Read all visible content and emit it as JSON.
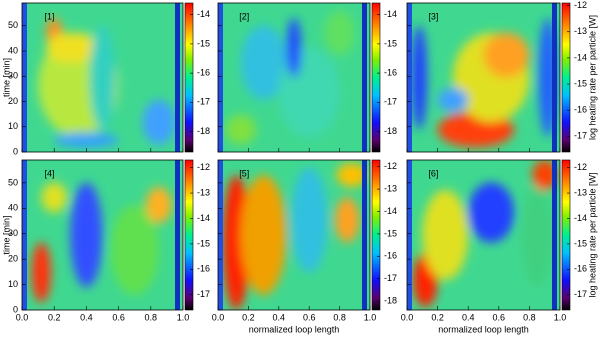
{
  "chart_data": [
    {
      "type": "heatmap",
      "label": "[1]",
      "ylabel": "time [min]",
      "xlim": [
        0,
        1
      ],
      "xticks": [
        0,
        0.2,
        0.4,
        0.6,
        0.8,
        1
      ],
      "ylim": [
        0,
        59
      ],
      "yticks": [
        0,
        10,
        20,
        30,
        40,
        50
      ],
      "clim": [
        -18.7,
        -13.6
      ],
      "cticks": [
        -18,
        -17,
        -16,
        -15,
        -14
      ]
    },
    {
      "type": "heatmap",
      "label": "[2]",
      "xlim": [
        0,
        1
      ],
      "xticks": [
        0,
        0.2,
        0.4,
        0.6,
        0.8,
        1
      ],
      "ylim": [
        0,
        59
      ],
      "yticks": [
        0,
        10,
        20,
        30,
        40,
        50
      ],
      "clim": [
        -18.7,
        -13.6
      ],
      "cticks": [
        -18,
        -17,
        -16,
        -15,
        -14
      ]
    },
    {
      "type": "heatmap",
      "label": "[3]",
      "clabel": "log heating rate per particle [W]",
      "xlim": [
        0,
        1
      ],
      "xticks": [
        0,
        0.2,
        0.4,
        0.6,
        0.8,
        1
      ],
      "ylim": [
        0,
        59
      ],
      "yticks": [
        0,
        10,
        20,
        30,
        40,
        50
      ],
      "clim": [
        -17.6,
        -11.9
      ],
      "cticks": [
        -17,
        -16,
        -15,
        -14,
        -13,
        -12
      ]
    },
    {
      "type": "heatmap",
      "label": "[4]",
      "ylabel": "time [min]",
      "xlim": [
        0,
        1
      ],
      "xticks": [
        {
          "value": 0,
          "label": "0.0"
        },
        0.2,
        0.4,
        0.6,
        0.8,
        {
          "value": 1,
          "label": "1.0"
        }
      ],
      "ylim": [
        0,
        59
      ],
      "yticks": [
        0,
        10,
        20,
        30,
        40,
        50
      ],
      "clim": [
        -17.6,
        -11.7
      ],
      "cticks": [
        -17,
        -16,
        -15,
        -14,
        -13,
        -12
      ]
    },
    {
      "type": "heatmap",
      "label": "[5]",
      "xlabel": "normalized loop length",
      "xlim": [
        0,
        1
      ],
      "xticks": [
        {
          "value": 0,
          "label": "0.0"
        },
        0.2,
        0.4,
        0.6,
        0.8,
        {
          "value": 1,
          "label": "1.0"
        }
      ],
      "ylim": [
        0,
        59
      ],
      "yticks": [
        0,
        10,
        20,
        30,
        40,
        50
      ],
      "clim": [
        -18.4,
        -11.7
      ],
      "cticks": [
        -18,
        -17,
        -16,
        -15,
        -14,
        -13,
        -12
      ]
    },
    {
      "type": "heatmap",
      "label": "[6]",
      "xlabel": "normalized loop length",
      "clabel": "log heating rate per particle [W]",
      "xlim": [
        0,
        1
      ],
      "xticks": [
        {
          "value": 0,
          "label": "0.0"
        },
        0.2,
        0.4,
        0.6,
        0.8,
        {
          "value": 1,
          "label": "1.0"
        }
      ],
      "ylim": [
        0,
        59
      ],
      "yticks": [
        0,
        10,
        20,
        30,
        40,
        50
      ],
      "clim": [
        -17.6,
        -11.7
      ],
      "cticks": [
        -17,
        -16,
        -15,
        -14,
        -13,
        -12
      ]
    }
  ]
}
